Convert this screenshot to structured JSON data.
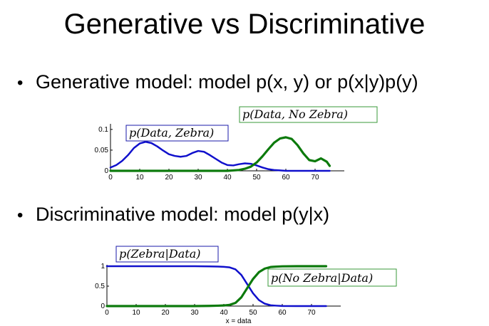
{
  "slide": {
    "title": "Generative vs Discriminative",
    "bullets": [
      {
        "marker": "•",
        "text": "Generative model: model p(x, y) or p(x|y)p(y)"
      },
      {
        "marker": "•",
        "text": "Discriminative model: model p(y|x)"
      }
    ]
  },
  "colors": {
    "blue": "#1010cc",
    "green": "#0c7a0c",
    "blue_box": "#1a1aa8",
    "green_box": "#3a9a3a"
  },
  "chart_data": [
    {
      "type": "line",
      "xlim": [
        0,
        80
      ],
      "ylim": [
        0,
        0.11
      ],
      "x_ticks": [
        "0",
        "10",
        "20",
        "30",
        "40",
        "50",
        "60",
        "70"
      ],
      "y_ticks": [
        "0",
        "0.05",
        "0.1"
      ],
      "xlabel": "",
      "series": [
        {
          "name": "p(Data, Zebra)",
          "color": "#1010cc",
          "x": [
            0,
            2,
            4,
            6,
            8,
            10,
            12,
            14,
            16,
            18,
            20,
            22,
            24,
            26,
            28,
            30,
            32,
            34,
            36,
            38,
            40,
            42,
            44,
            46,
            48,
            50,
            52,
            54,
            56,
            58,
            60,
            62,
            64,
            66,
            68,
            70,
            72,
            74,
            75
          ],
          "y": [
            0.008,
            0.014,
            0.024,
            0.038,
            0.055,
            0.066,
            0.07,
            0.067,
            0.059,
            0.049,
            0.04,
            0.036,
            0.034,
            0.036,
            0.043,
            0.048,
            0.046,
            0.038,
            0.029,
            0.02,
            0.014,
            0.013,
            0.016,
            0.018,
            0.017,
            0.013,
            0.008,
            0.004,
            0.002,
            0.001,
            0.0,
            0.0,
            0.0,
            0.0,
            0.0,
            0.0,
            0.0,
            0.0,
            0.0
          ]
        },
        {
          "name": "p(Data, No Zebra)",
          "color": "#0c7a0c",
          "x": [
            0,
            5,
            10,
            15,
            20,
            25,
            30,
            35,
            40,
            44,
            46,
            48,
            50,
            52,
            54,
            56,
            58,
            60,
            62,
            64,
            66,
            68,
            70,
            72,
            74,
            75
          ],
          "y": [
            0,
            0,
            0,
            0,
            0,
            0,
            0,
            0,
            0.0,
            0.002,
            0.005,
            0.01,
            0.02,
            0.035,
            0.052,
            0.068,
            0.078,
            0.081,
            0.077,
            0.062,
            0.042,
            0.026,
            0.023,
            0.03,
            0.022,
            0.012
          ]
        }
      ]
    },
    {
      "type": "line",
      "xlim": [
        0,
        80
      ],
      "ylim": [
        0,
        1
      ],
      "x_ticks": [
        "0",
        "10",
        "20",
        "30",
        "40",
        "50",
        "60",
        "70"
      ],
      "y_ticks": [
        "0",
        "0.5",
        "1"
      ],
      "xlabel": "x = data",
      "series": [
        {
          "name": "p(Zebra|Data)",
          "color": "#1010cc",
          "x": [
            0,
            10,
            20,
            30,
            35,
            38,
            40,
            42,
            44,
            46,
            48,
            50,
            52,
            54,
            56,
            58,
            60,
            65,
            70,
            75
          ],
          "y": [
            1,
            1,
            1,
            1,
            0.995,
            0.99,
            0.985,
            0.97,
            0.92,
            0.78,
            0.55,
            0.32,
            0.15,
            0.06,
            0.02,
            0.01,
            0.003,
            0,
            0,
            0
          ]
        },
        {
          "name": "p(No Zebra|Data)",
          "color": "#0c7a0c",
          "x": [
            0,
            10,
            20,
            30,
            35,
            38,
            40,
            42,
            44,
            46,
            48,
            50,
            52,
            54,
            56,
            58,
            60,
            65,
            70,
            75
          ],
          "y": [
            0,
            0,
            0,
            0,
            0.005,
            0.01,
            0.015,
            0.03,
            0.08,
            0.22,
            0.45,
            0.68,
            0.85,
            0.94,
            0.98,
            0.99,
            0.997,
            1,
            1,
            1
          ]
        }
      ]
    }
  ]
}
